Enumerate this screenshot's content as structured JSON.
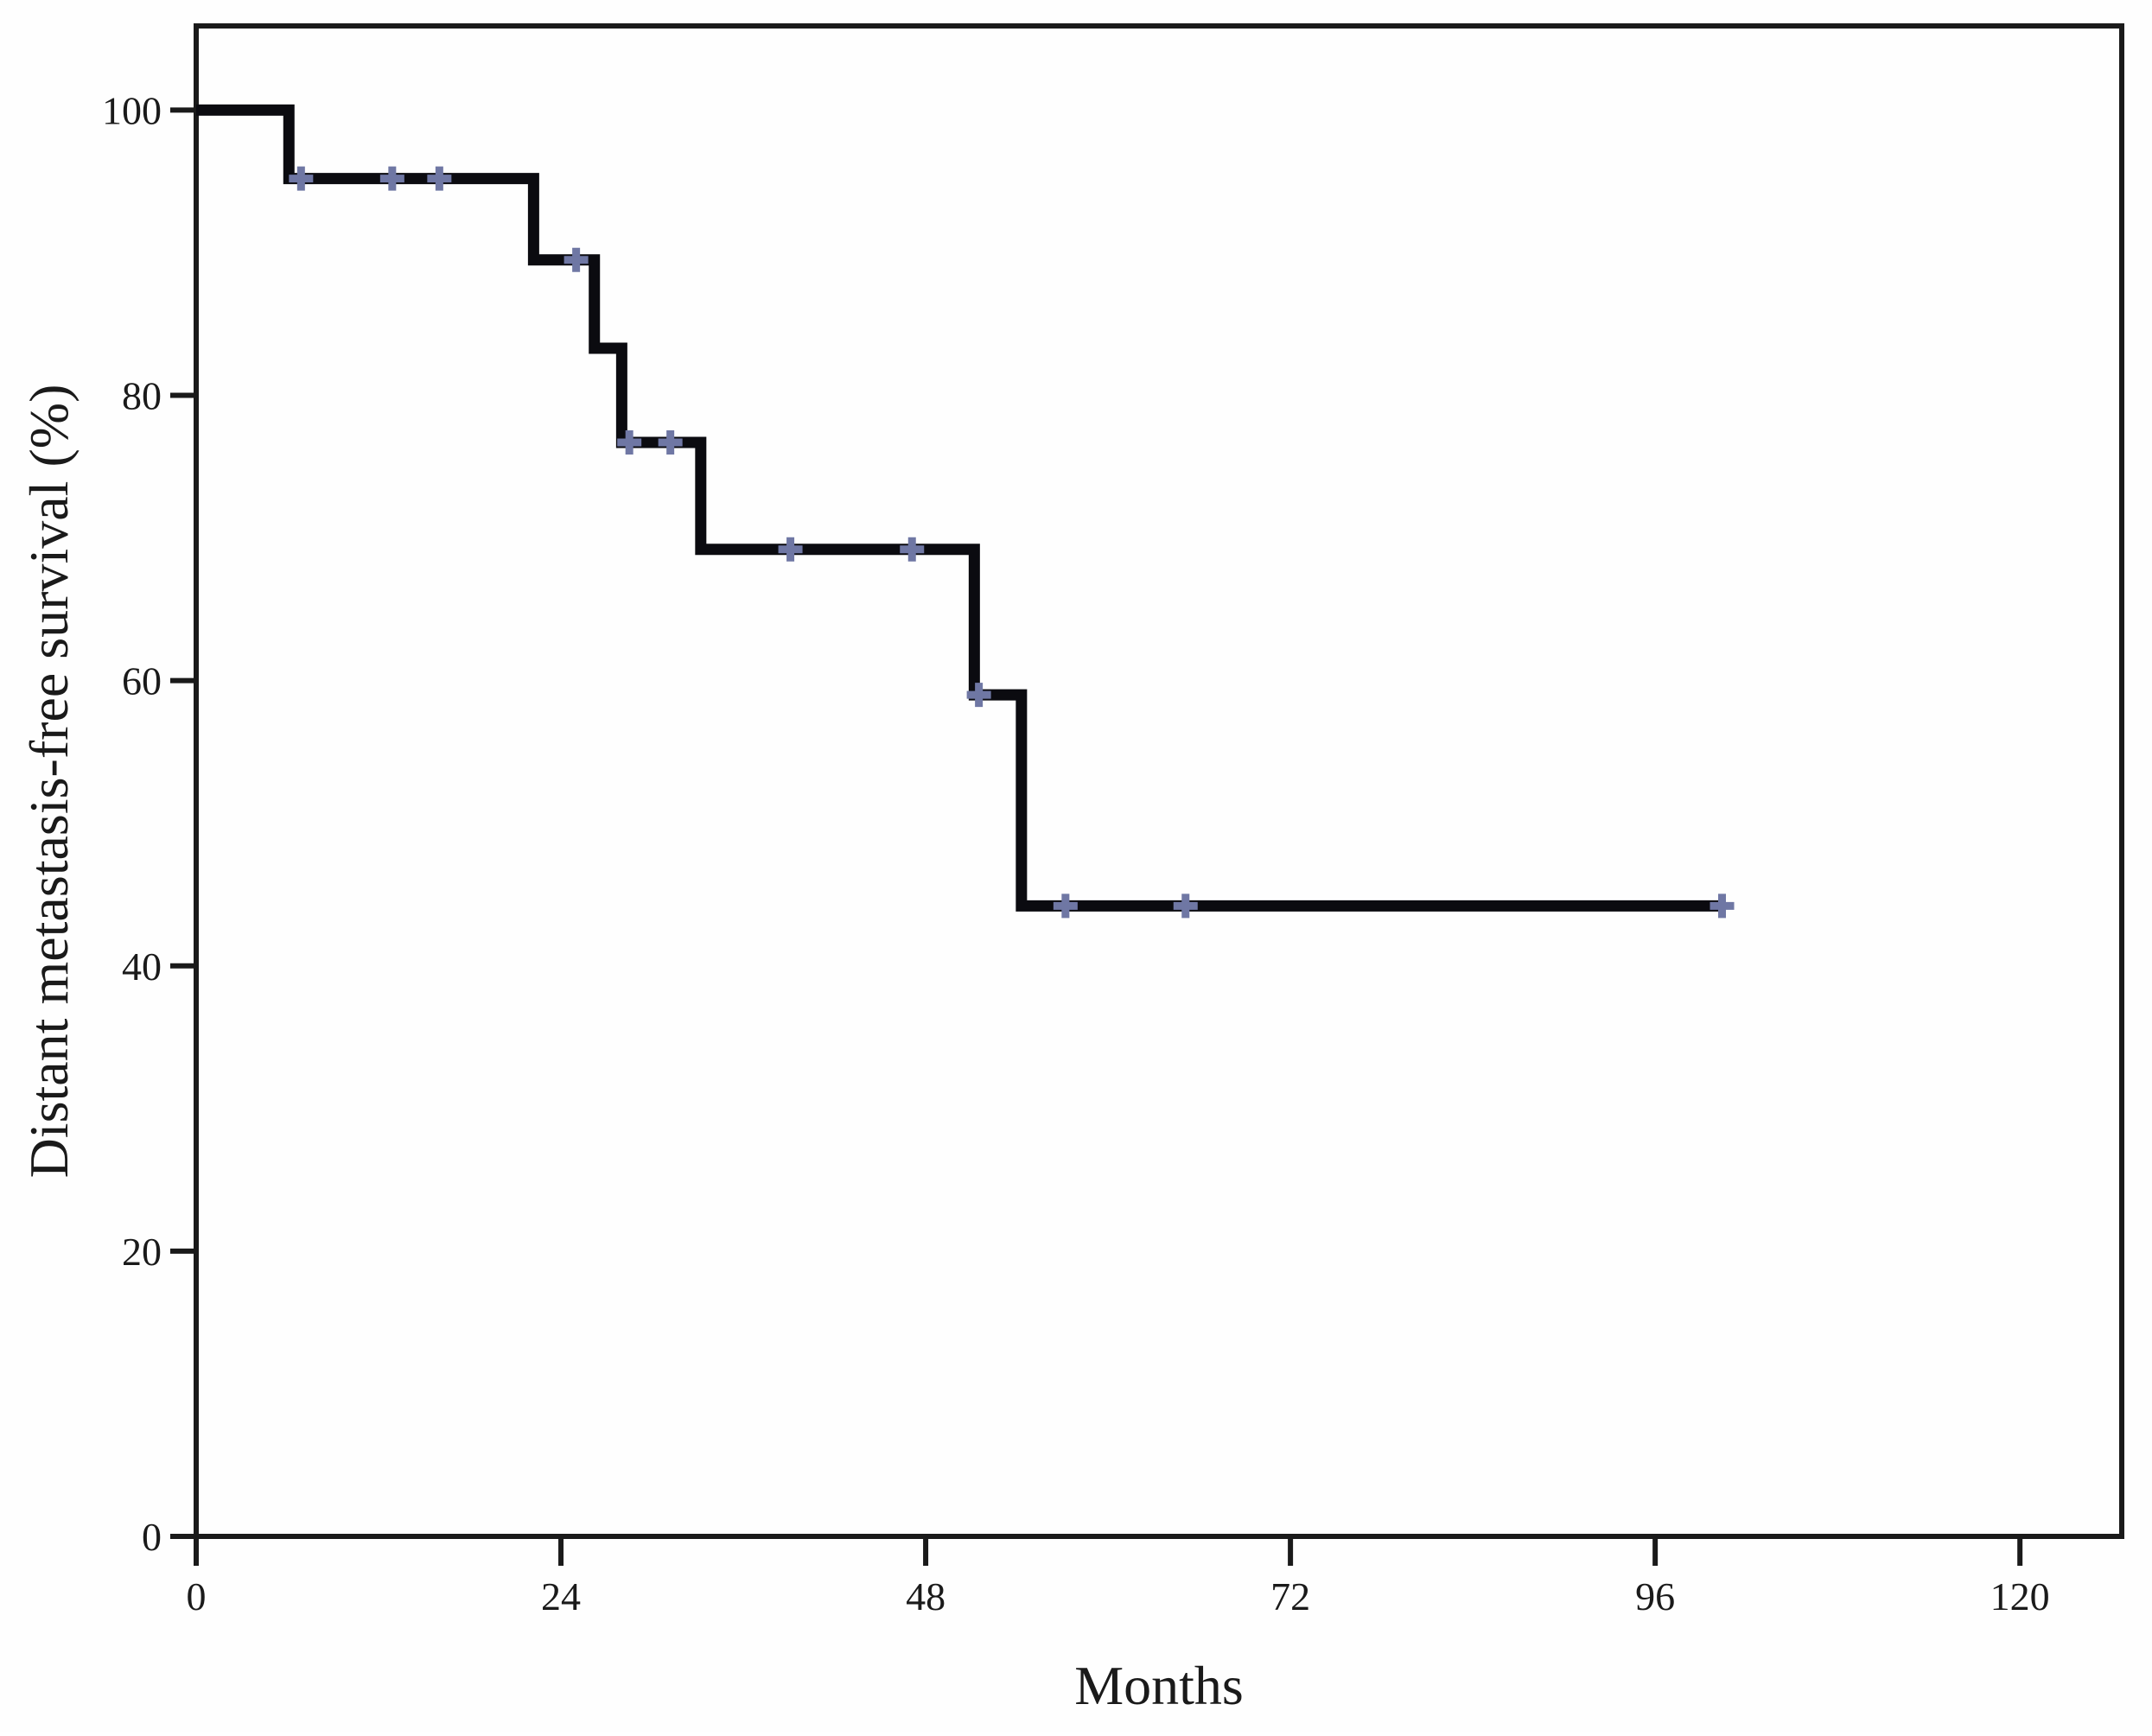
{
  "figure": {
    "background_color": "#fefefe",
    "xlabel": "Months",
    "ylabel": "Distant metastasis-free survival (%)"
  },
  "chart_data": {
    "type": "line",
    "subtype": "kaplan-meier-step",
    "title": "",
    "xlabel": "Months",
    "ylabel": "Distant metastasis-free survival (%)",
    "xlim": [
      0,
      126.7
    ],
    "ylim": [
      0,
      105.9
    ],
    "x_ticks": [
      0,
      24,
      48,
      72,
      96,
      120
    ],
    "y_ticks": [
      0,
      20,
      40,
      60,
      80,
      100
    ],
    "grid": false,
    "legend": "none",
    "curve_color": "#0b0b10",
    "censor_color": "#6f77a4",
    "frame_color": "#1a1a1a",
    "curve_stroke_width": 13,
    "steps": [
      {
        "survival_pct": 100,
        "t_start": 0,
        "t_end": 6.1,
        "censors": []
      },
      {
        "survival_pct": 95.2,
        "t_start": 6.1,
        "t_end": 22.2,
        "censors": [
          6.9,
          12.9,
          16.0
        ]
      },
      {
        "survival_pct": 89.5,
        "t_start": 22.2,
        "t_end": 26.2,
        "censors": [
          25.0
        ]
      },
      {
        "survival_pct": 83.3,
        "t_start": 26.2,
        "t_end": 28.0,
        "censors": []
      },
      {
        "survival_pct": 76.7,
        "t_start": 28.0,
        "t_end": 33.2,
        "censors": [
          28.5,
          31.2
        ]
      },
      {
        "survival_pct": 69.2,
        "t_start": 33.2,
        "t_end": 51.2,
        "censors": [
          39.1,
          47.1
        ]
      },
      {
        "survival_pct": 59.0,
        "t_start": 51.2,
        "t_end": 54.3,
        "censors": [
          51.5
        ]
      },
      {
        "survival_pct": 44.2,
        "t_start": 54.3,
        "t_end": 100.4,
        "censors": [
          57.2,
          65.1,
          100.4
        ]
      }
    ],
    "event_times_months": [
      6,
      22,
      26,
      28,
      33,
      51,
      54
    ],
    "survival_after_each_event_pct": [
      95.2,
      89.5,
      83.3,
      76.7,
      69.2,
      59.0,
      44.2
    ],
    "censor_times_months": [
      7,
      13,
      16,
      25,
      28.5,
      31,
      39,
      47,
      51.5,
      57,
      65,
      100
    ],
    "follow_up_end_months": 100.4
  }
}
